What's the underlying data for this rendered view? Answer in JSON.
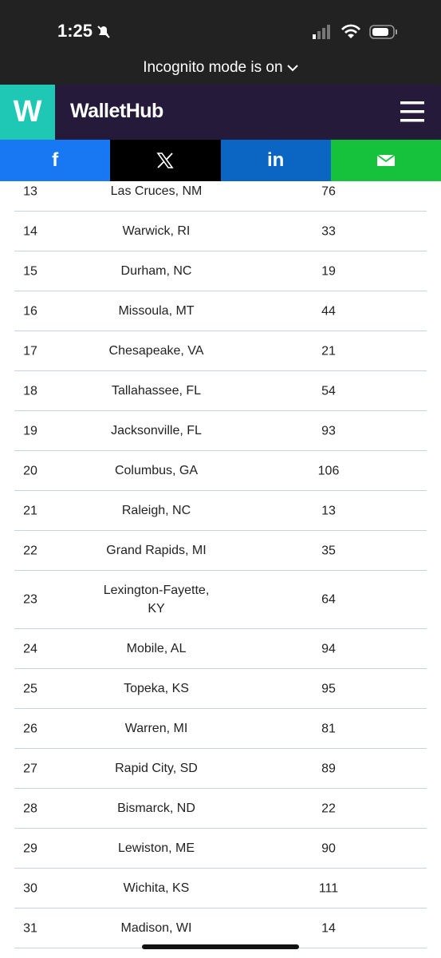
{
  "status_bar": {
    "time": "1:25"
  },
  "browser": {
    "incognito": "Incognito mode is on"
  },
  "header": {
    "logo": "W",
    "brand": "WalletHub"
  },
  "share": {
    "facebook": "f",
    "linkedin": "in"
  },
  "table": {
    "rows": [
      [
        "13",
        "Las Cruces, NM",
        "76"
      ],
      [
        "14",
        "Warwick, RI",
        "33"
      ],
      [
        "15",
        "Durham, NC",
        "19"
      ],
      [
        "16",
        "Missoula, MT",
        "44"
      ],
      [
        "17",
        "Chesapeake, VA",
        "21"
      ],
      [
        "18",
        "Tallahassee, FL",
        "54"
      ],
      [
        "19",
        "Jacksonville, FL",
        "93"
      ],
      [
        "20",
        "Columbus, GA",
        "106"
      ],
      [
        "21",
        "Raleigh, NC",
        "13"
      ],
      [
        "22",
        "Grand Rapids, MI",
        "35"
      ],
      [
        "23",
        "Lexington-Fayette, KY",
        "64"
      ],
      [
        "24",
        "Mobile, AL",
        "94"
      ],
      [
        "25",
        "Topeka, KS",
        "95"
      ],
      [
        "26",
        "Warren, MI",
        "81"
      ],
      [
        "27",
        "Rapid City, SD",
        "89"
      ],
      [
        "28",
        "Bismarck, ND",
        "22"
      ],
      [
        "29",
        "Lewiston, ME",
        "90"
      ],
      [
        "30",
        "Wichita, KS",
        "111"
      ],
      [
        "31",
        "Madison, WI",
        "14"
      ]
    ]
  }
}
